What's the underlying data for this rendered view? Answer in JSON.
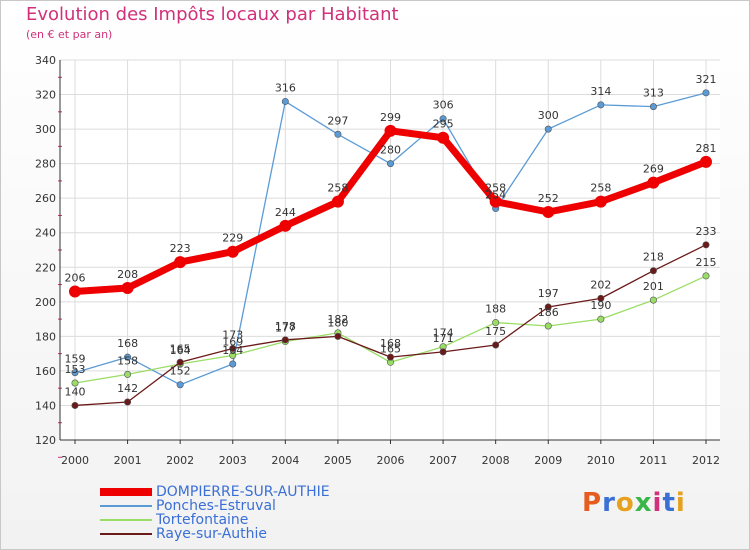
{
  "header": {
    "title": "Evolution des Impôts locaux par Habitant",
    "subtitle": "(en € et par an)"
  },
  "logo": {
    "text": "Proxiti",
    "colors": [
      "#e65c1e",
      "#3a6fd6",
      "#e6a11e",
      "#3ab54a",
      "#d0317a",
      "#3a6fd6",
      "#e6a11e"
    ]
  },
  "chart_data": {
    "type": "line",
    "title": "Evolution des Impôts locaux par Habitant",
    "subtitle": "(en € et par an)",
    "xlabel": "",
    "ylabel": "",
    "x": [
      "2000",
      "2001",
      "2002",
      "2003",
      "2004",
      "2005",
      "2006",
      "2007",
      "2008",
      "2009",
      "2010",
      "2011",
      "2012"
    ],
    "ylim": [
      120,
      340
    ],
    "yticks": [
      120,
      140,
      160,
      180,
      200,
      220,
      240,
      260,
      280,
      300,
      320,
      340
    ],
    "grid": true,
    "legend_position": "bottom-left",
    "series": [
      {
        "name": "DOMPIERRE-SUR-AUTHIE",
        "color": "#ee0000",
        "values": [
          206,
          208,
          223,
          229,
          244,
          258,
          299,
          295,
          258,
          252,
          258,
          269,
          281
        ]
      },
      {
        "name": "Ponches-Estruval",
        "color": "#5b9bd5",
        "values": [
          159,
          168,
          152,
          164,
          316,
          297,
          280,
          306,
          254,
          300,
          314,
          313,
          321
        ]
      },
      {
        "name": "Tortefontaine",
        "color": "#99dd66",
        "values": [
          153,
          158,
          164,
          169,
          177,
          182,
          165,
          174,
          188,
          186,
          190,
          201,
          215
        ]
      },
      {
        "name": "Raye-sur-Authie",
        "color": "#6b1a1a",
        "values": [
          140,
          142,
          165,
          173,
          178,
          180,
          168,
          171,
          175,
          197,
          202,
          218,
          233
        ]
      }
    ]
  }
}
